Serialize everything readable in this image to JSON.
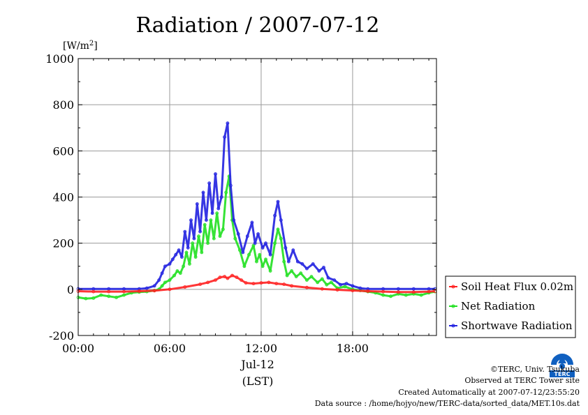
{
  "chart_data": {
    "type": "line",
    "title": "Radiation / 2007-07-12",
    "ylabel_unit": "[W/m",
    "ylabel_unit_sup": "2",
    "ylabel_unit_close": "]",
    "ylim": [
      -200,
      1000
    ],
    "yticks": [
      "-200",
      "0",
      "200",
      "400",
      "600",
      "800",
      "1000"
    ],
    "xlim_hours": [
      0,
      23.5
    ],
    "xticks": [
      {
        "hour": 0,
        "label": "00:00"
      },
      {
        "hour": 6,
        "label": "06:00"
      },
      {
        "hour": 12,
        "label": "12:00"
      },
      {
        "hour": 18,
        "label": "18:00"
      }
    ],
    "xlabel_date": "Jul-12",
    "xlabel": "(LST)",
    "grid": true,
    "legend_position": "right",
    "series": [
      {
        "name": "Soil Heat Flux 0.02m",
        "color": "#ff2020",
        "points": [
          [
            0,
            -8
          ],
          [
            1,
            -10
          ],
          [
            2,
            -10
          ],
          [
            3,
            -10
          ],
          [
            4,
            -8
          ],
          [
            5,
            -6
          ],
          [
            6,
            0
          ],
          [
            7,
            10
          ],
          [
            8,
            22
          ],
          [
            8.5,
            30
          ],
          [
            9,
            40
          ],
          [
            9.3,
            52
          ],
          [
            9.6,
            55
          ],
          [
            9.8,
            48
          ],
          [
            10.1,
            60
          ],
          [
            10.4,
            52
          ],
          [
            10.7,
            40
          ],
          [
            11,
            28
          ],
          [
            11.5,
            25
          ],
          [
            12,
            28
          ],
          [
            12.5,
            30
          ],
          [
            13,
            25
          ],
          [
            13.5,
            22
          ],
          [
            14,
            15
          ],
          [
            15,
            8
          ],
          [
            16,
            2
          ],
          [
            17,
            -2
          ],
          [
            18,
            -5
          ],
          [
            19,
            -8
          ],
          [
            20,
            -10
          ],
          [
            21,
            -12
          ],
          [
            22,
            -12
          ],
          [
            23,
            -10
          ],
          [
            23.4,
            -8
          ]
        ]
      },
      {
        "name": "Net Radiation",
        "color": "#20e020",
        "points": [
          [
            0,
            -35
          ],
          [
            0.5,
            -40
          ],
          [
            1,
            -38
          ],
          [
            1.5,
            -25
          ],
          [
            2,
            -30
          ],
          [
            2.5,
            -35
          ],
          [
            3,
            -25
          ],
          [
            3.5,
            -15
          ],
          [
            4,
            -12
          ],
          [
            4.5,
            -10
          ],
          [
            5,
            -5
          ],
          [
            5.3,
            0
          ],
          [
            5.5,
            15
          ],
          [
            5.7,
            30
          ],
          [
            6,
            40
          ],
          [
            6.3,
            60
          ],
          [
            6.5,
            80
          ],
          [
            6.7,
            70
          ],
          [
            6.9,
            100
          ],
          [
            7.1,
            160
          ],
          [
            7.3,
            110
          ],
          [
            7.5,
            200
          ],
          [
            7.7,
            140
          ],
          [
            7.9,
            230
          ],
          [
            8.1,
            160
          ],
          [
            8.3,
            280
          ],
          [
            8.5,
            200
          ],
          [
            8.7,
            300
          ],
          [
            8.9,
            220
          ],
          [
            9.1,
            330
          ],
          [
            9.3,
            230
          ],
          [
            9.5,
            260
          ],
          [
            9.7,
            420
          ],
          [
            9.9,
            490
          ],
          [
            10.1,
            300
          ],
          [
            10.3,
            220
          ],
          [
            10.6,
            170
          ],
          [
            10.9,
            100
          ],
          [
            11.2,
            150
          ],
          [
            11.5,
            190
          ],
          [
            11.7,
            120
          ],
          [
            11.9,
            150
          ],
          [
            12.1,
            100
          ],
          [
            12.3,
            130
          ],
          [
            12.6,
            80
          ],
          [
            12.9,
            200
          ],
          [
            13.1,
            260
          ],
          [
            13.3,
            220
          ],
          [
            13.5,
            120
          ],
          [
            13.7,
            60
          ],
          [
            14,
            80
          ],
          [
            14.3,
            55
          ],
          [
            14.6,
            70
          ],
          [
            15,
            40
          ],
          [
            15.3,
            55
          ],
          [
            15.7,
            30
          ],
          [
            16,
            45
          ],
          [
            16.3,
            20
          ],
          [
            16.6,
            30
          ],
          [
            17,
            5
          ],
          [
            17.5,
            12
          ],
          [
            18,
            0
          ],
          [
            18.5,
            -5
          ],
          [
            19,
            -10
          ],
          [
            19.5,
            -15
          ],
          [
            20,
            -25
          ],
          [
            20.5,
            -30
          ],
          [
            21,
            -20
          ],
          [
            21.5,
            -25
          ],
          [
            22,
            -20
          ],
          [
            22.5,
            -25
          ],
          [
            23,
            -15
          ],
          [
            23.4,
            -10
          ]
        ]
      },
      {
        "name": "Shortwave Radiation",
        "color": "#2020e0",
        "points": [
          [
            0,
            2
          ],
          [
            1,
            2
          ],
          [
            2,
            2
          ],
          [
            3,
            2
          ],
          [
            4,
            2
          ],
          [
            4.5,
            5
          ],
          [
            5,
            15
          ],
          [
            5.3,
            40
          ],
          [
            5.5,
            70
          ],
          [
            5.7,
            100
          ],
          [
            6,
            110
          ],
          [
            6.2,
            130
          ],
          [
            6.4,
            150
          ],
          [
            6.6,
            170
          ],
          [
            6.8,
            140
          ],
          [
            7,
            250
          ],
          [
            7.2,
            180
          ],
          [
            7.4,
            300
          ],
          [
            7.6,
            220
          ],
          [
            7.8,
            370
          ],
          [
            8,
            250
          ],
          [
            8.2,
            420
          ],
          [
            8.4,
            300
          ],
          [
            8.6,
            460
          ],
          [
            8.8,
            330
          ],
          [
            9,
            500
          ],
          [
            9.2,
            350
          ],
          [
            9.4,
            400
          ],
          [
            9.6,
            660
          ],
          [
            9.8,
            720
          ],
          [
            10,
            450
          ],
          [
            10.2,
            300
          ],
          [
            10.5,
            240
          ],
          [
            10.8,
            160
          ],
          [
            11.1,
            230
          ],
          [
            11.4,
            290
          ],
          [
            11.6,
            200
          ],
          [
            11.8,
            240
          ],
          [
            12.1,
            180
          ],
          [
            12.3,
            200
          ],
          [
            12.6,
            150
          ],
          [
            12.9,
            320
          ],
          [
            13.1,
            380
          ],
          [
            13.3,
            300
          ],
          [
            13.6,
            180
          ],
          [
            13.8,
            120
          ],
          [
            14.1,
            170
          ],
          [
            14.4,
            120
          ],
          [
            14.7,
            110
          ],
          [
            15,
            90
          ],
          [
            15.4,
            110
          ],
          [
            15.8,
            80
          ],
          [
            16.1,
            95
          ],
          [
            16.4,
            50
          ],
          [
            16.8,
            40
          ],
          [
            17.2,
            20
          ],
          [
            17.6,
            25
          ],
          [
            18,
            15
          ],
          [
            18.5,
            5
          ],
          [
            19,
            2
          ],
          [
            20,
            2
          ],
          [
            21,
            2
          ],
          [
            22,
            2
          ],
          [
            23,
            2
          ],
          [
            23.4,
            2
          ]
        ]
      }
    ]
  },
  "credits": {
    "copyright": "©TERC, Univ. Tsukuba",
    "observed": "Observed at TERC Tower site",
    "created": "Created Automatically at 2007-07-12/23:55:20",
    "source": "Data source : /home/hojyo/new/TERC-data/sorted_data/MET.10s.dat"
  },
  "logo": {
    "text": "TERC"
  }
}
